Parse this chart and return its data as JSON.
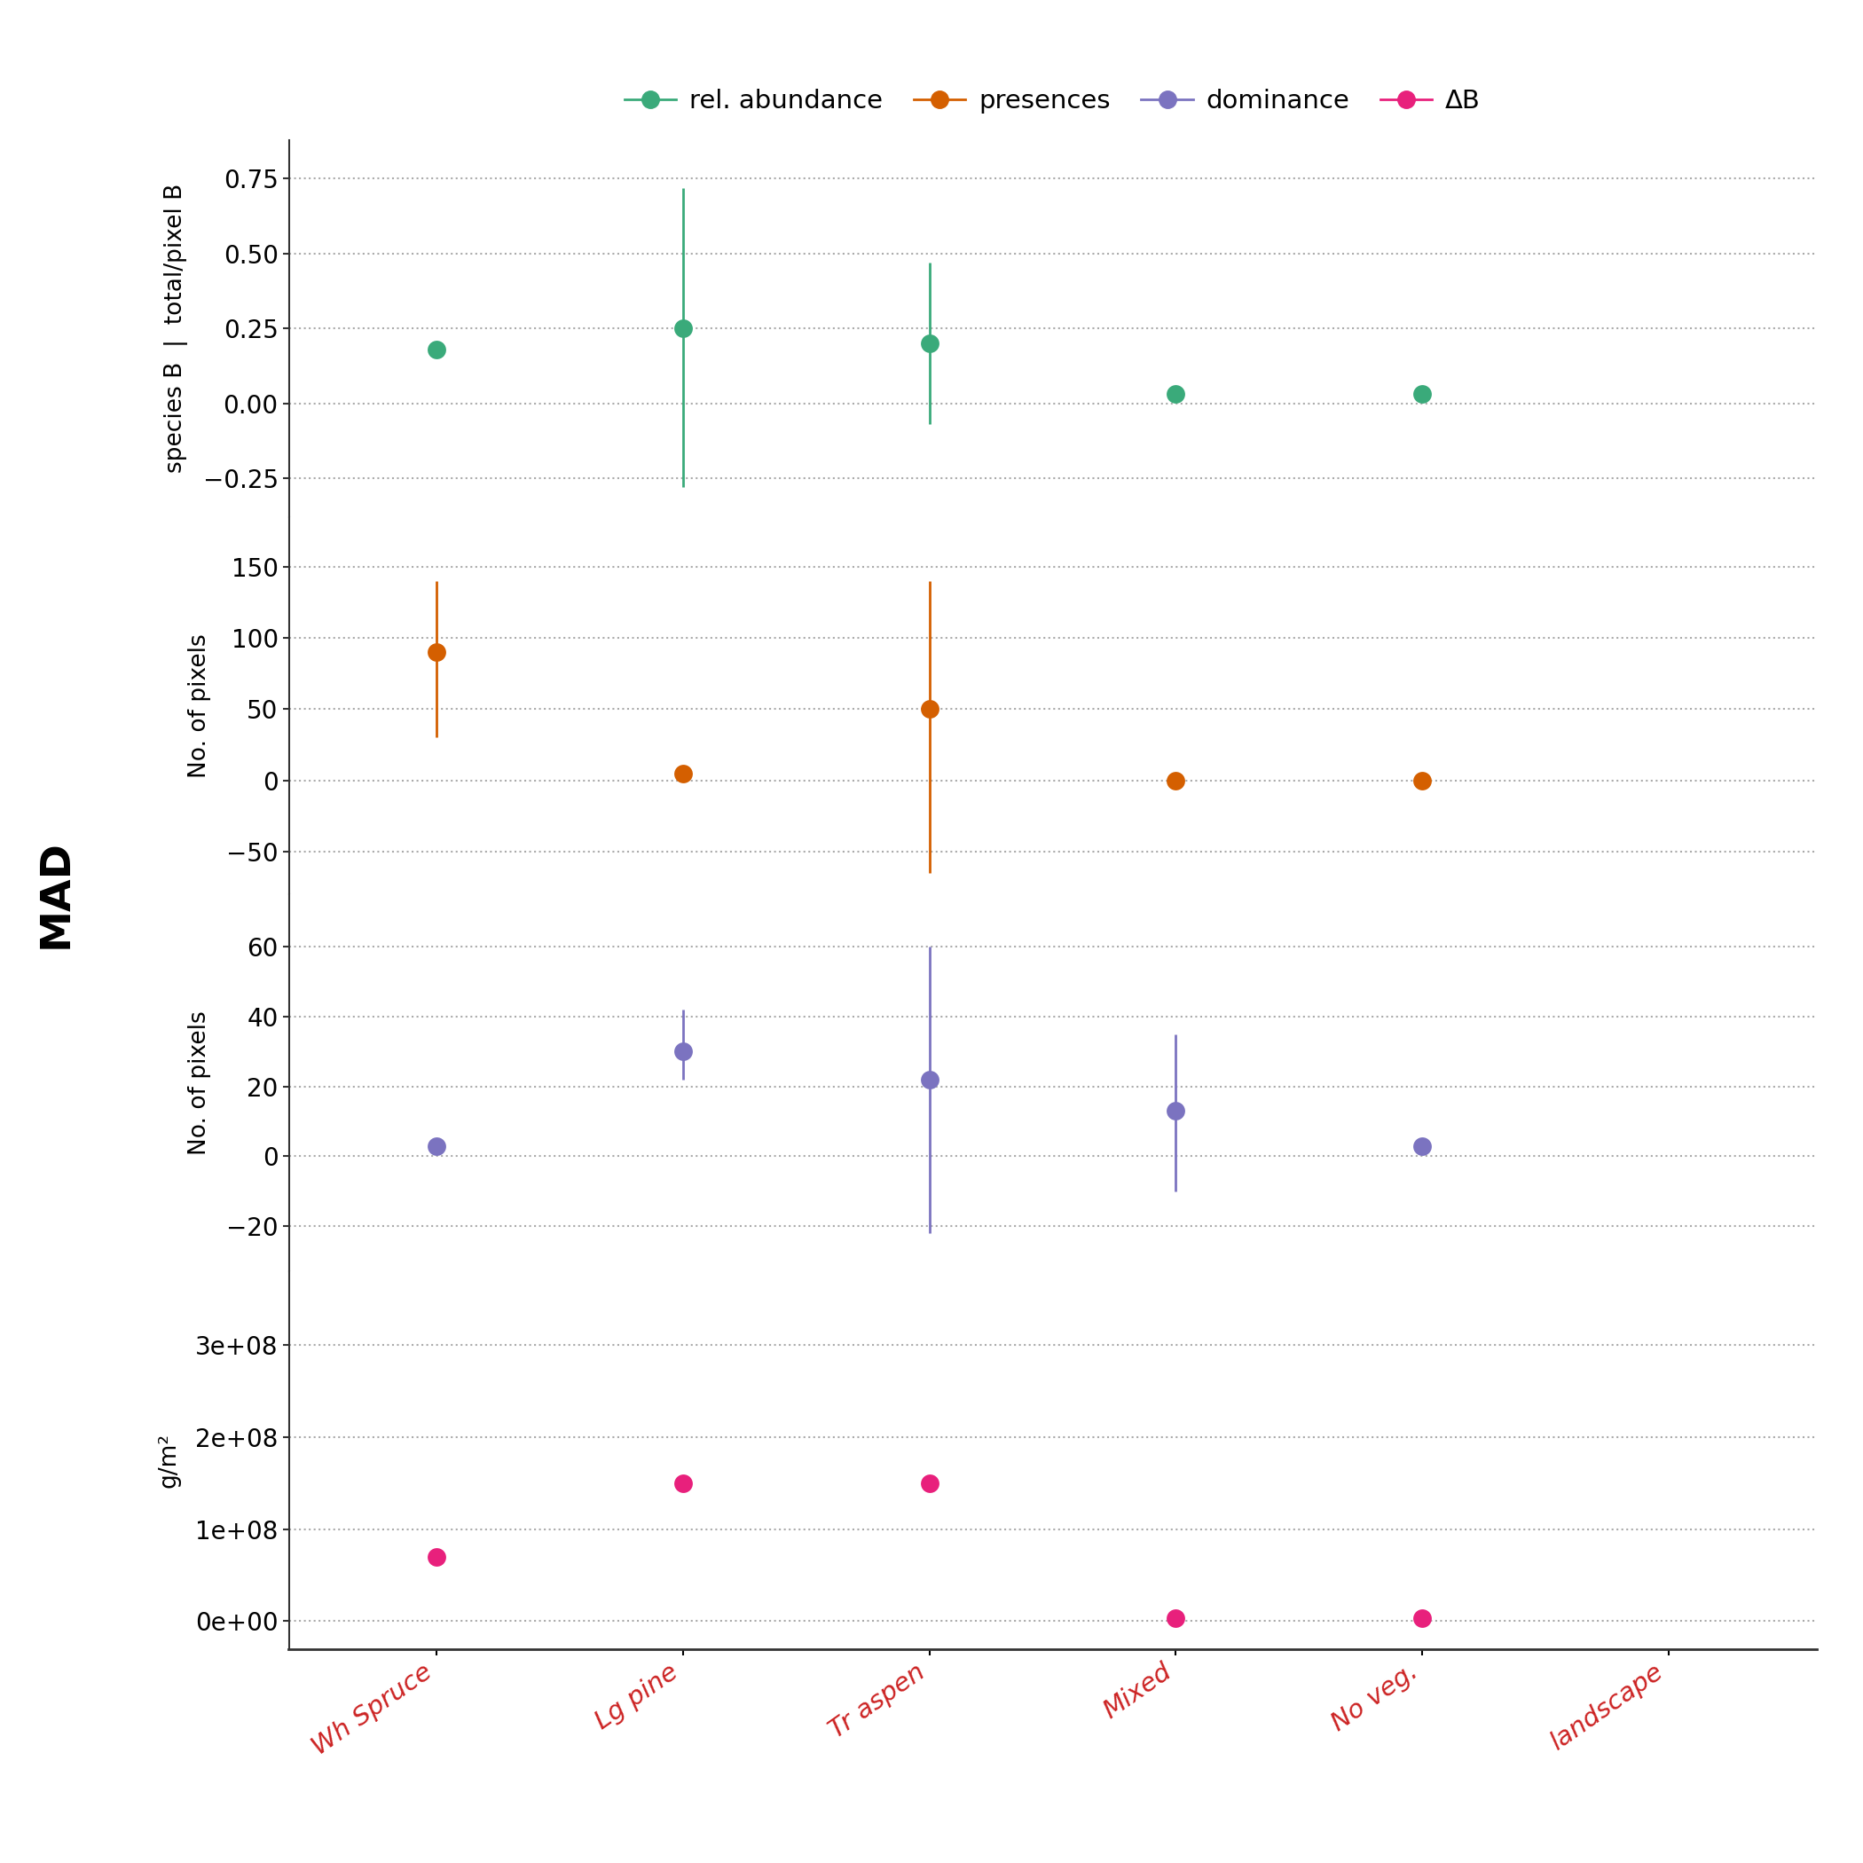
{
  "categories": [
    "Wh Spruce",
    "Lg pine",
    "Tr aspen",
    "Mixed",
    "No veg.",
    "landscape"
  ],
  "panels": [
    {
      "key": "rel_abundance",
      "ylabel_left": "species B",
      "ylabel_right": "total/pixel B",
      "ylim": [
        -0.38,
        0.88
      ],
      "yticks": [
        -0.25,
        0.0,
        0.25,
        0.5,
        0.75
      ],
      "color": "#3aaa7a",
      "values": [
        0.18,
        0.25,
        0.2,
        0.03,
        0.03,
        null
      ],
      "err_low": [
        null,
        -0.28,
        -0.07,
        null,
        null,
        null
      ],
      "err_high": [
        null,
        0.72,
        0.47,
        null,
        null,
        null
      ]
    },
    {
      "key": "presences",
      "ylabel_left": "No. of pixels",
      "ylabel_right": null,
      "ylim": [
        -80,
        185
      ],
      "yticks": [
        -50,
        0,
        50,
        100,
        150
      ],
      "color": "#d45f00",
      "values": [
        90,
        5,
        50,
        0,
        0,
        null
      ],
      "err_low": [
        30,
        null,
        -65,
        null,
        null,
        null
      ],
      "err_high": [
        140,
        null,
        140,
        null,
        null,
        null
      ]
    },
    {
      "key": "dominance",
      "ylabel_left": "No. of pixels",
      "ylabel_right": null,
      "ylim": [
        -33,
        75
      ],
      "yticks": [
        -20,
        0,
        20,
        40,
        60
      ],
      "color": "#7b73c0",
      "values": [
        3,
        30,
        22,
        13,
        3,
        null
      ],
      "err_low": [
        null,
        22,
        -22,
        -10,
        null,
        null
      ],
      "err_high": [
        null,
        42,
        60,
        35,
        null,
        null
      ]
    },
    {
      "key": "deltaB",
      "ylabel_left": "g/m²",
      "ylabel_right": null,
      "ylim": [
        -30000000.0,
        380000000.0
      ],
      "yticks": [
        0,
        100000000.0,
        200000000.0,
        300000000.0
      ],
      "ytick_labels": [
        "0e+00",
        "1e+08",
        "2e+08",
        "3e+08"
      ],
      "color": "#e8207c",
      "values": [
        70000000.0,
        150000000.0,
        150000000.0,
        3000000.0,
        3000000.0,
        null
      ],
      "err_low": [
        null,
        null,
        null,
        null,
        null,
        null
      ],
      "err_high": [
        null,
        null,
        null,
        null,
        null,
        null
      ]
    }
  ],
  "legend_labels": [
    "rel. abundance",
    "presences",
    "dominance",
    "ΔB"
  ],
  "legend_colors": [
    "#3aaa7a",
    "#d45f00",
    "#7b73c0",
    "#e8207c"
  ],
  "mad_ylabel": "MAD",
  "background": "white",
  "grid_color": "#aaaaaa",
  "xticklabel_color": "#cc2222",
  "spine_color": "#333333"
}
